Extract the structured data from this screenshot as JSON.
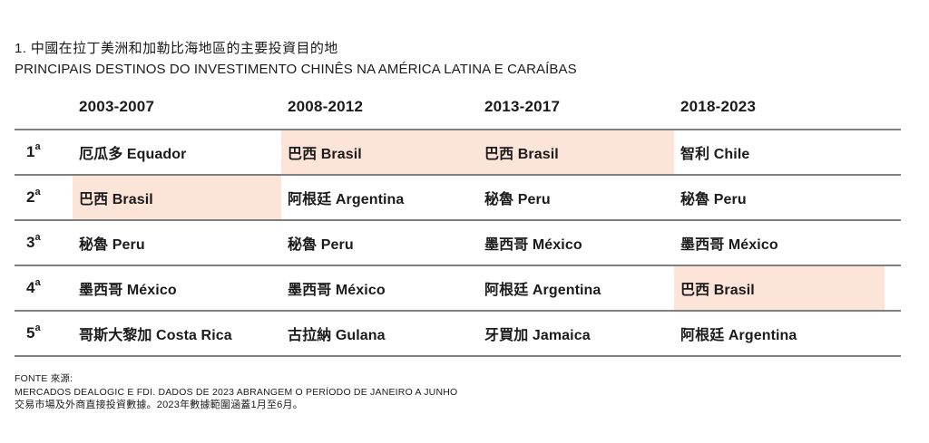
{
  "chart_data": {
    "type": "table",
    "title_zh": "1. 中國在拉丁美洲和加勒比海地區的主要投資目的地",
    "title_pt": "PRINCIPAIS DESTINOS DO INVESTIMENTO CHINÊS NA AMÉRICA LATINA E CARAÍBAS",
    "columns": [
      "2003-2007",
      "2008-2012",
      "2013-2017",
      "2018-2023"
    ],
    "rows": [
      {
        "rank": "1",
        "rank_sup": "a",
        "cells": [
          {
            "text": "厄瓜多 Equador",
            "highlight": false
          },
          {
            "text": "巴西 Brasil",
            "highlight": true
          },
          {
            "text": "巴西 Brasil",
            "highlight": true
          },
          {
            "text": "智利 Chile",
            "highlight": false
          }
        ]
      },
      {
        "rank": "2",
        "rank_sup": "a",
        "cells": [
          {
            "text": "巴西 Brasil",
            "highlight": true
          },
          {
            "text": "阿根廷 Argentina",
            "highlight": false
          },
          {
            "text": "秘魯 Peru",
            "highlight": false
          },
          {
            "text": "秘魯 Peru",
            "highlight": false
          }
        ]
      },
      {
        "rank": "3",
        "rank_sup": "a",
        "cells": [
          {
            "text": "秘魯 Peru",
            "highlight": false
          },
          {
            "text": "秘魯 Peru",
            "highlight": false
          },
          {
            "text": "墨西哥 México",
            "highlight": false
          },
          {
            "text": "墨西哥 México",
            "highlight": false
          }
        ]
      },
      {
        "rank": "4",
        "rank_sup": "a",
        "cells": [
          {
            "text": "墨西哥 México",
            "highlight": false
          },
          {
            "text": "墨西哥 México",
            "highlight": false
          },
          {
            "text": "阿根廷 Argentina",
            "highlight": false
          },
          {
            "text": "巴西 Brasil",
            "highlight": true
          }
        ]
      },
      {
        "rank": "5",
        "rank_sup": "a",
        "cells": [
          {
            "text": "哥斯大黎加 Costa Rica",
            "highlight": false
          },
          {
            "text": "古拉納 Gulana",
            "highlight": false
          },
          {
            "text": "牙買加 Jamaica",
            "highlight": false
          },
          {
            "text": "阿根廷 Argentina",
            "highlight": false
          }
        ]
      }
    ],
    "layout": {
      "grid": "off",
      "highlighted_country": "巴西 Brasil"
    },
    "colors": {
      "highlight": "#fce4d9",
      "line": "#7f7f7f",
      "text": "#1b1b1b"
    }
  },
  "footer": {
    "line1": "FONTE 來源:",
    "line2": "MERCADOS DEALOGIC E FDI. DADOS DE 2023 ABRANGEM O PERÍODO DE JANEIRO A JUNHO",
    "line3": "交易市場及外商直接投資數據。2023年數據範圍涵蓋1月至6月。"
  }
}
